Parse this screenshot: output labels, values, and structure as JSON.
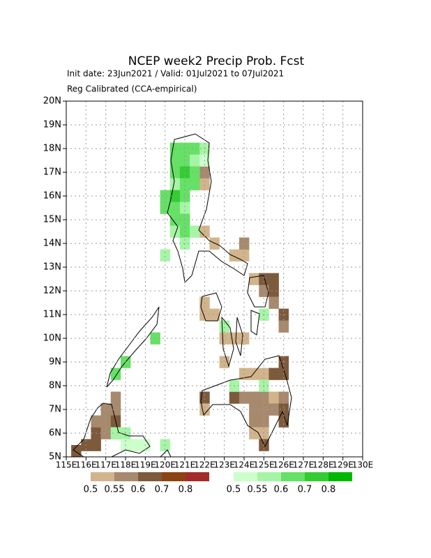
{
  "chart_data": {
    "type": "map",
    "title": "NCEP week2 Precip Prob. Fcst",
    "subtitle": "Init date: 23Jun2021 / Valid: 01Jul2021 to 07Jul2021",
    "method": "Reg Calibrated (CCA-empirical)",
    "xlim": [
      115,
      130
    ],
    "ylim": [
      5,
      20
    ],
    "xticks": [
      {
        "value": 115,
        "label": "115E"
      },
      {
        "value": 116,
        "label": "116E"
      },
      {
        "value": 117,
        "label": "117E"
      },
      {
        "value": 118,
        "label": "118E"
      },
      {
        "value": 119,
        "label": "119E"
      },
      {
        "value": 120,
        "label": "120E"
      },
      {
        "value": 121,
        "label": "121E"
      },
      {
        "value": 122,
        "label": "122E"
      },
      {
        "value": 123,
        "label": "123E"
      },
      {
        "value": 124,
        "label": "124E"
      },
      {
        "value": 125,
        "label": "125E"
      },
      {
        "value": 126,
        "label": "126E"
      },
      {
        "value": 127,
        "label": "127E"
      },
      {
        "value": 128,
        "label": "128E"
      },
      {
        "value": 129,
        "label": "129E"
      },
      {
        "value": 130,
        "label": "130E"
      }
    ],
    "yticks": [
      {
        "value": 5,
        "label": "5N"
      },
      {
        "value": 6,
        "label": "6N"
      },
      {
        "value": 7,
        "label": "7N"
      },
      {
        "value": 8,
        "label": "8N"
      },
      {
        "value": 9,
        "label": "9N"
      },
      {
        "value": 10,
        "label": "10N"
      },
      {
        "value": 11,
        "label": "11N"
      },
      {
        "value": 12,
        "label": "12N"
      },
      {
        "value": 13,
        "label": "13N"
      },
      {
        "value": 14,
        "label": "14N"
      },
      {
        "value": 15,
        "label": "15N"
      },
      {
        "value": 16,
        "label": "16N"
      },
      {
        "value": 17,
        "label": "17N"
      },
      {
        "value": 18,
        "label": "18N"
      },
      {
        "value": 19,
        "label": "19N"
      },
      {
        "value": 20,
        "label": "20N"
      }
    ],
    "grid": true,
    "cell_size": 0.5,
    "series": [
      {
        "levels": [
          0.5,
          0.55,
          0.6,
          0.7,
          0.8
        ],
        "colors": [
          "#d2b48c",
          "#a78a6e",
          "#7d5a3c",
          "#8b4513",
          "#a52a2a"
        ],
        "lon": [
          121.75,
          121.75,
          121.75,
          122.25,
          123.25,
          123.75,
          123.75,
          124.25,
          124.75,
          125.25,
          124.75,
          125.25,
          125.25,
          125.75,
          125.75,
          121.75,
          122.25,
          121.75,
          122.75,
          122.75,
          123.25,
          123.75,
          123.75,
          124.25,
          124.75,
          125.25,
          125.75,
          125.75,
          123.25,
          123.75,
          124.25,
          124.75,
          125.25,
          125.75,
          124.25,
          124.75,
          125.25,
          125.75,
          125.75,
          124.25,
          124.75,
          124.25,
          124.75,
          124.75,
          121.75,
          121.75,
          115.25,
          115.75,
          116.25,
          116.25,
          116.75,
          116.75,
          116.25,
          116.75,
          117.25,
          117.25,
          117.25,
          117.25
        ],
        "lat": [
          16.25,
          16.75,
          14.25,
          13.75,
          13.25,
          13.25,
          13.75,
          12.25,
          12.25,
          12.25,
          11.75,
          11.75,
          11.25,
          10.75,
          10.25,
          11.25,
          10.75,
          10.75,
          9.75,
          8.75,
          9.75,
          9.75,
          8.25,
          8.25,
          8.25,
          8.25,
          8.25,
          8.75,
          7.25,
          7.25,
          7.25,
          7.25,
          7.25,
          7.25,
          6.75,
          6.75,
          6.75,
          6.75,
          6.25,
          6.25,
          6.25,
          5.75,
          5.75,
          5.25,
          7.25,
          6.75,
          5.0,
          5.25,
          5.25,
          5.75,
          5.75,
          6.25,
          6.25,
          6.75,
          6.75,
          7.25,
          6.25,
          5.75
        ],
        "values": [
          0.5,
          0.55,
          0.5,
          0.5,
          0.5,
          0.5,
          0.55,
          0.5,
          0.6,
          0.6,
          0.55,
          0.6,
          0.55,
          0.6,
          0.55,
          0.5,
          0.5,
          0.5,
          0.5,
          0.5,
          0.5,
          0.5,
          0.5,
          0.5,
          0.5,
          0.6,
          0.6,
          0.6,
          0.6,
          0.55,
          0.55,
          0.55,
          0.5,
          0.55,
          0.55,
          0.55,
          0.55,
          0.6,
          0.6,
          0.55,
          0.55,
          0.5,
          0.5,
          0.6,
          0.6,
          0.5,
          0.6,
          0.6,
          0.6,
          0.6,
          0.55,
          0.55,
          0.55,
          0.55,
          0.55,
          0.55,
          0.6,
          0.55
        ]
      },
      {
        "levels": [
          0.5,
          0.55,
          0.6,
          0.7,
          0.8
        ],
        "colors": [
          "#ccffcc",
          "#a6f5a6",
          "#66e066",
          "#33cc33",
          "#00b800"
        ],
        "lon": [
          120.25,
          120.75,
          121.25,
          121.75,
          120.25,
          120.75,
          121.25,
          121.75,
          120.25,
          120.75,
          121.25,
          120.25,
          120.75,
          121.25,
          119.75,
          120.25,
          120.75,
          119.75,
          120.25,
          120.75,
          120.25,
          120.75,
          120.25,
          120.75,
          121.25,
          119.75,
          120.75,
          122.75,
          124.75,
          119.25,
          117.75,
          117.25,
          123.25,
          124.75,
          117.25,
          117.75,
          117.75,
          118.25,
          118.75,
          119.75
        ],
        "lat": [
          17.75,
          17.75,
          17.75,
          17.75,
          17.25,
          17.25,
          17.25,
          17.25,
          16.75,
          16.75,
          16.75,
          16.25,
          16.25,
          16.25,
          15.75,
          15.75,
          15.75,
          15.25,
          15.25,
          15.25,
          14.75,
          14.75,
          14.25,
          14.25,
          14.25,
          13.25,
          13.75,
          10.25,
          10.75,
          9.75,
          8.75,
          8.25,
          7.75,
          7.75,
          5.75,
          5.75,
          5.25,
          5.25,
          5.25,
          5.25
        ],
        "values": [
          0.6,
          0.6,
          0.6,
          0.55,
          0.6,
          0.6,
          0.55,
          0.5,
          0.6,
          0.7,
          0.6,
          0.55,
          0.6,
          0.6,
          0.6,
          0.7,
          0.6,
          0.6,
          0.6,
          0.55,
          0.6,
          0.6,
          0.55,
          0.6,
          0.55,
          0.55,
          0.55,
          0.55,
          0.55,
          0.6,
          0.6,
          0.6,
          0.55,
          0.55,
          0.55,
          0.55,
          0.5,
          0.5,
          0.5,
          0.55
        ]
      }
    ]
  }
}
